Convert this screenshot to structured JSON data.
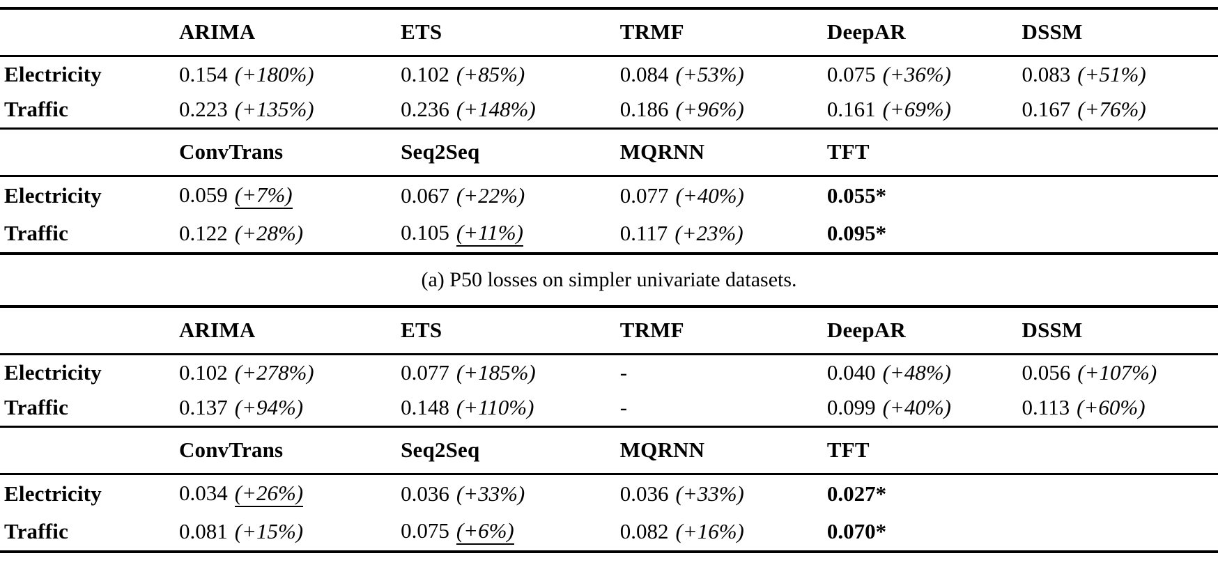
{
  "page": {
    "background": "#ffffff",
    "text_color": "#000000"
  },
  "caption_a": "(a) P50 losses on simpler univariate datasets.",
  "tables": [
    {
      "name": "p50",
      "sections": [
        {
          "headers": [
            "",
            "ARIMA",
            "ETS",
            "TRMF",
            "DeepAR",
            "DSSM"
          ],
          "rows": [
            {
              "label": "Electricity",
              "cells": [
                {
                  "value": "0.154",
                  "pct": "(+180%)"
                },
                {
                  "value": "0.102",
                  "pct": "(+85%)"
                },
                {
                  "value": "0.084",
                  "pct": "(+53%)"
                },
                {
                  "value": "0.075",
                  "pct": "(+36%)"
                },
                {
                  "value": "0.083",
                  "pct": "(+51%)"
                }
              ]
            },
            {
              "label": "Traffic",
              "cells": [
                {
                  "value": "0.223",
                  "pct": "(+135%)"
                },
                {
                  "value": "0.236",
                  "pct": "(+148%)"
                },
                {
                  "value": "0.186",
                  "pct": "(+96%)"
                },
                {
                  "value": "0.161",
                  "pct": "(+69%)"
                },
                {
                  "value": "0.167",
                  "pct": "(+76%)"
                }
              ]
            }
          ]
        },
        {
          "headers": [
            "",
            "ConvTrans",
            "Seq2Seq",
            "MQRNN",
            "TFT",
            ""
          ],
          "rows": [
            {
              "label": "Electricity",
              "cells": [
                {
                  "value": "0.059",
                  "pct": "(+7%)",
                  "underline": true
                },
                {
                  "value": "0.067",
                  "pct": "(+22%)"
                },
                {
                  "value": "0.077",
                  "pct": "(+40%)"
                },
                {
                  "value": "0.055*",
                  "best": true
                },
                {}
              ]
            },
            {
              "label": "Traffic",
              "cells": [
                {
                  "value": "0.122",
                  "pct": "(+28%)"
                },
                {
                  "value": "0.105",
                  "pct": "(+11%)",
                  "underline": true
                },
                {
                  "value": "0.117",
                  "pct": "(+23%)"
                },
                {
                  "value": "0.095*",
                  "best": true
                },
                {}
              ]
            }
          ]
        }
      ]
    },
    {
      "name": "p90",
      "sections": [
        {
          "headers": [
            "",
            "ARIMA",
            "ETS",
            "TRMF",
            "DeepAR",
            "DSSM"
          ],
          "rows": [
            {
              "label": "Electricity",
              "cells": [
                {
                  "value": "0.102",
                  "pct": "(+278%)"
                },
                {
                  "value": "0.077",
                  "pct": "(+185%)"
                },
                {
                  "value": "-"
                },
                {
                  "value": "0.040",
                  "pct": "(+48%)"
                },
                {
                  "value": "0.056",
                  "pct": "(+107%)"
                }
              ]
            },
            {
              "label": "Traffic",
              "cells": [
                {
                  "value": "0.137",
                  "pct": "(+94%)"
                },
                {
                  "value": "0.148",
                  "pct": "(+110%)"
                },
                {
                  "value": "-"
                },
                {
                  "value": "0.099",
                  "pct": "(+40%)"
                },
                {
                  "value": "0.113",
                  "pct": "(+60%)"
                }
              ]
            }
          ]
        },
        {
          "headers": [
            "",
            "ConvTrans",
            "Seq2Seq",
            "MQRNN",
            "TFT",
            ""
          ],
          "rows": [
            {
              "label": "Electricity",
              "cells": [
                {
                  "value": "0.034",
                  "pct": "(+26%)",
                  "underline": true
                },
                {
                  "value": "0.036",
                  "pct": "(+33%)"
                },
                {
                  "value": "0.036",
                  "pct": "(+33%)"
                },
                {
                  "value": "0.027*",
                  "best": true
                },
                {}
              ]
            },
            {
              "label": "Traffic",
              "cells": [
                {
                  "value": "0.081",
                  "pct": "(+15%)"
                },
                {
                  "value": "0.075",
                  "pct": "(+6%)",
                  "underline": true
                },
                {
                  "value": "0.082",
                  "pct": "(+16%)"
                },
                {
                  "value": "0.070*",
                  "best": true
                },
                {}
              ]
            }
          ]
        }
      ]
    }
  ]
}
